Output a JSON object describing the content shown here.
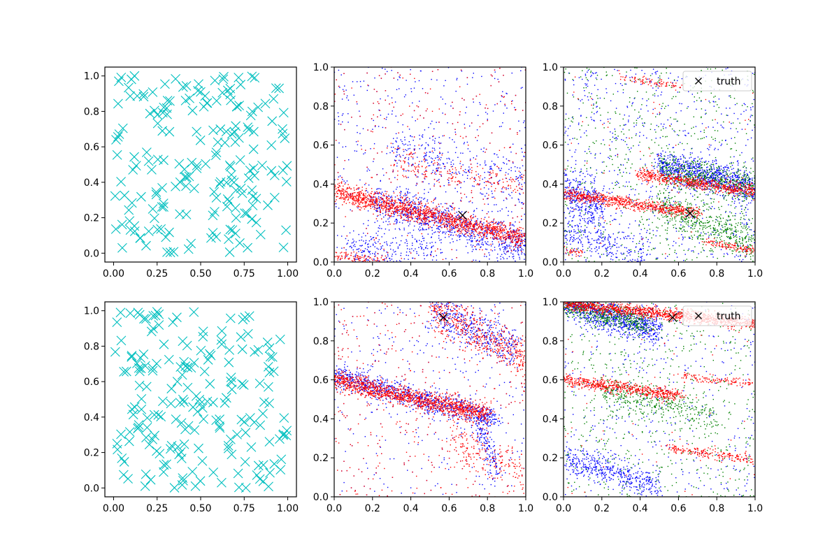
{
  "figure": {
    "background": "#ffffff"
  },
  "chart_data": [
    {
      "type": "scatter",
      "row": 1,
      "col": 1,
      "xlim": [
        -0.05,
        1.05
      ],
      "ylim": [
        -0.05,
        1.05
      ],
      "xticks": [
        0.0,
        0.25,
        0.5,
        0.75,
        1.0
      ],
      "xtick_labels": [
        "0.00",
        "0.25",
        "0.50",
        "0.75",
        "1.00"
      ],
      "yticks": [
        0.0,
        0.2,
        0.4,
        0.6,
        0.8,
        1.0
      ],
      "ytick_labels": [
        "0.0",
        "0.2",
        "0.4",
        "0.6",
        "0.8",
        "1.0"
      ],
      "marker": "x",
      "color": "#00bfbf",
      "points_description": "≈200 points uniformly spread over the unit square",
      "sample_points": [
        [
          0.03,
          0.97
        ],
        [
          0.12,
          1.0
        ],
        [
          0.81,
          0.99
        ],
        [
          0.95,
          0.93
        ],
        [
          0.28,
          0.69
        ],
        [
          0.5,
          0.91
        ],
        [
          0.72,
          0.65
        ],
        [
          0.3,
          0.09
        ],
        [
          0.05,
          0.03
        ],
        [
          0.99,
          0.13
        ]
      ]
    },
    {
      "type": "scatter",
      "row": 1,
      "col": 2,
      "xlim": [
        0,
        1
      ],
      "ylim": [
        0,
        1
      ],
      "xticks": [
        0.0,
        0.2,
        0.4,
        0.6,
        0.8,
        1.0
      ],
      "xtick_labels": [
        "0.0",
        "0.2",
        "0.4",
        "0.6",
        "0.8",
        "1.0"
      ],
      "yticks": [
        0.0,
        0.2,
        0.4,
        0.6,
        0.8,
        1.0
      ],
      "ytick_labels": [
        "0.0",
        "0.2",
        "0.4",
        "0.6",
        "0.8",
        "1.0"
      ],
      "series": [
        {
          "color": "#0000ff",
          "bands": [
            {
              "x0": 0.2,
              "y0": 0.31,
              "x1": 1.0,
              "y1": 0.08,
              "spread": 0.05,
              "n": 900
            },
            {
              "x0": 0.3,
              "y0": 0.58,
              "x1": 1.0,
              "y1": 0.38,
              "spread": 0.07,
              "n": 300
            },
            {
              "x0": 0.05,
              "y0": 0.08,
              "x1": 0.55,
              "y1": 0.06,
              "spread": 0.04,
              "n": 200
            }
          ],
          "scatter_n": 600
        },
        {
          "color": "#ff0000",
          "bands": [
            {
              "x0": 0.0,
              "y0": 0.36,
              "x1": 1.0,
              "y1": 0.12,
              "spread": 0.025,
              "n": 1500
            },
            {
              "x0": 0.3,
              "y0": 0.52,
              "x1": 1.0,
              "y1": 0.38,
              "spread": 0.04,
              "n": 200
            },
            {
              "x0": 0.0,
              "y0": 0.03,
              "x1": 0.3,
              "y1": 0.0,
              "spread": 0.015,
              "n": 120
            }
          ],
          "scatter_n": 300
        }
      ],
      "truth": [
        0.67,
        0.24
      ]
    },
    {
      "type": "scatter",
      "row": 1,
      "col": 3,
      "xlim": [
        0,
        1
      ],
      "ylim": [
        0,
        1
      ],
      "xticks": [
        0.0,
        0.2,
        0.4,
        0.6,
        0.8,
        1.0
      ],
      "xtick_labels": [
        "0.0",
        "0.2",
        "0.4",
        "0.6",
        "0.8",
        "1.0"
      ],
      "yticks": [
        0.0,
        0.2,
        0.4,
        0.6,
        0.8,
        1.0
      ],
      "ytick_labels": [
        "0.0",
        "0.2",
        "0.4",
        "0.6",
        "0.8",
        "1.0"
      ],
      "series": [
        {
          "color": "#0000ff",
          "bands": [
            {
              "x0": 0.5,
              "y0": 0.5,
              "x1": 1.0,
              "y1": 0.38,
              "spread": 0.04,
              "n": 900
            },
            {
              "x0": 0.0,
              "y0": 0.38,
              "x1": 0.2,
              "y1": 0.26,
              "spread": 0.06,
              "n": 350
            },
            {
              "x0": 0.0,
              "y0": 0.15,
              "x1": 0.45,
              "y1": 0.02,
              "spread": 0.05,
              "n": 250
            }
          ],
          "scatter_n": 700
        },
        {
          "color": "#008000",
          "bands": [
            {
              "x0": 0.5,
              "y0": 0.48,
              "x1": 1.0,
              "y1": 0.38,
              "spread": 0.04,
              "n": 500
            },
            {
              "x0": 0.5,
              "y0": 0.28,
              "x1": 1.0,
              "y1": 0.1,
              "spread": 0.05,
              "n": 500
            }
          ],
          "scatter_n": 600
        },
        {
          "color": "#ff0000",
          "bands": [
            {
              "x0": 0.0,
              "y0": 0.35,
              "x1": 0.7,
              "y1": 0.25,
              "spread": 0.015,
              "n": 700
            },
            {
              "x0": 0.4,
              "y0": 0.45,
              "x1": 1.0,
              "y1": 0.36,
              "spread": 0.015,
              "n": 600
            },
            {
              "x0": 0.3,
              "y0": 0.95,
              "x1": 0.6,
              "y1": 0.9,
              "spread": 0.01,
              "n": 80
            },
            {
              "x0": 0.0,
              "y0": 0.06,
              "x1": 0.1,
              "y1": 0.05,
              "spread": 0.01,
              "n": 40
            },
            {
              "x0": 0.75,
              "y0": 0.1,
              "x1": 1.0,
              "y1": 0.06,
              "spread": 0.01,
              "n": 120
            }
          ],
          "scatter_n": 60
        }
      ],
      "truth": [
        0.66,
        0.25
      ],
      "legend": {
        "entries": [
          "truth"
        ],
        "placement": "upper right"
      }
    },
    {
      "type": "scatter",
      "row": 2,
      "col": 1,
      "xlim": [
        -0.05,
        1.05
      ],
      "ylim": [
        -0.05,
        1.05
      ],
      "xticks": [
        0.0,
        0.25,
        0.5,
        0.75,
        1.0
      ],
      "xtick_labels": [
        "0.00",
        "0.25",
        "0.50",
        "0.75",
        "1.00"
      ],
      "yticks": [
        0.0,
        0.2,
        0.4,
        0.6,
        0.8,
        1.0
      ],
      "ytick_labels": [
        "0.0",
        "0.2",
        "0.4",
        "0.6",
        "0.8",
        "1.0"
      ],
      "marker": "x",
      "color": "#00bfbf",
      "points_description": "≈200 points uniformly spread over the unit square",
      "sample_points": [
        [
          0.04,
          0.99
        ],
        [
          0.14,
          0.99
        ],
        [
          0.26,
          0.98
        ],
        [
          0.78,
          0.97
        ],
        [
          0.43,
          0.35
        ],
        [
          0.47,
          0.01
        ],
        [
          0.62,
          0.03
        ],
        [
          0.9,
          0.74
        ],
        [
          0.02,
          0.25
        ],
        [
          0.84,
          0.05
        ]
      ]
    },
    {
      "type": "scatter",
      "row": 2,
      "col": 2,
      "xlim": [
        0,
        1
      ],
      "ylim": [
        0,
        1
      ],
      "xticks": [
        0.0,
        0.2,
        0.4,
        0.6,
        0.8,
        1.0
      ],
      "xtick_labels": [
        "0.0",
        "0.2",
        "0.4",
        "0.6",
        "0.8",
        "1.0"
      ],
      "yticks": [
        0.0,
        0.2,
        0.4,
        0.6,
        0.8,
        1.0
      ],
      "ytick_labels": [
        "0.0",
        "0.2",
        "0.4",
        "0.6",
        "0.8",
        "1.0"
      ],
      "series": [
        {
          "color": "#0000ff",
          "bands": [
            {
              "x0": 0.0,
              "y0": 0.62,
              "x1": 0.85,
              "y1": 0.4,
              "spread": 0.03,
              "n": 900
            },
            {
              "x0": 0.5,
              "y0": 0.97,
              "x1": 0.95,
              "y1": 0.75,
              "spread": 0.05,
              "n": 450
            },
            {
              "x0": 0.75,
              "y0": 0.4,
              "x1": 0.85,
              "y1": 0.1,
              "spread": 0.04,
              "n": 150
            }
          ],
          "scatter_n": 500
        },
        {
          "color": "#ff0000",
          "bands": [
            {
              "x0": 0.0,
              "y0": 0.6,
              "x1": 0.8,
              "y1": 0.42,
              "spread": 0.025,
              "n": 1300
            },
            {
              "x0": 0.5,
              "y0": 0.97,
              "x1": 1.0,
              "y1": 0.7,
              "spread": 0.05,
              "n": 500
            },
            {
              "x0": 0.6,
              "y0": 0.3,
              "x1": 1.0,
              "y1": 0.12,
              "spread": 0.06,
              "n": 200
            }
          ],
          "scatter_n": 400
        }
      ],
      "truth": [
        0.57,
        0.92
      ]
    },
    {
      "type": "scatter",
      "row": 2,
      "col": 3,
      "xlim": [
        0,
        1
      ],
      "ylim": [
        0,
        1
      ],
      "xticks": [
        0.0,
        0.2,
        0.4,
        0.6,
        0.8,
        1.0
      ],
      "xtick_labels": [
        "0.0",
        "0.2",
        "0.4",
        "0.6",
        "0.8",
        "1.0"
      ],
      "yticks": [
        0.0,
        0.2,
        0.4,
        0.6,
        0.8,
        1.0
      ],
      "ytick_labels": [
        "0.0",
        "0.2",
        "0.4",
        "0.6",
        "0.8",
        "1.0"
      ],
      "series": [
        {
          "color": "#0000ff",
          "bands": [
            {
              "x0": 0.0,
              "y0": 1.0,
              "x1": 0.5,
              "y1": 0.85,
              "spread": 0.04,
              "n": 900
            },
            {
              "x0": 0.0,
              "y0": 0.2,
              "x1": 0.5,
              "y1": 0.05,
              "spread": 0.035,
              "n": 450
            }
          ],
          "scatter_n": 400
        },
        {
          "color": "#008000",
          "bands": [
            {
              "x0": 0.0,
              "y0": 0.99,
              "x1": 0.45,
              "y1": 0.88,
              "spread": 0.035,
              "n": 500
            },
            {
              "x0": 0.2,
              "y0": 0.55,
              "x1": 0.8,
              "y1": 0.4,
              "spread": 0.04,
              "n": 350
            }
          ],
          "scatter_n": 600
        },
        {
          "color": "#ff0000",
          "bands": [
            {
              "x0": 0.0,
              "y0": 0.99,
              "x1": 1.0,
              "y1": 0.89,
              "spread": 0.015,
              "n": 1200
            },
            {
              "x0": 0.0,
              "y0": 0.6,
              "x1": 0.6,
              "y1": 0.52,
              "spread": 0.015,
              "n": 600
            },
            {
              "x0": 0.6,
              "y0": 0.62,
              "x1": 1.0,
              "y1": 0.58,
              "spread": 0.01,
              "n": 120
            },
            {
              "x0": 0.55,
              "y0": 0.25,
              "x1": 1.0,
              "y1": 0.19,
              "spread": 0.012,
              "n": 200
            }
          ],
          "scatter_n": 60
        }
      ],
      "truth": [
        0.57,
        0.92
      ],
      "legend": {
        "entries": [
          "truth"
        ],
        "placement": "upper right"
      }
    }
  ]
}
